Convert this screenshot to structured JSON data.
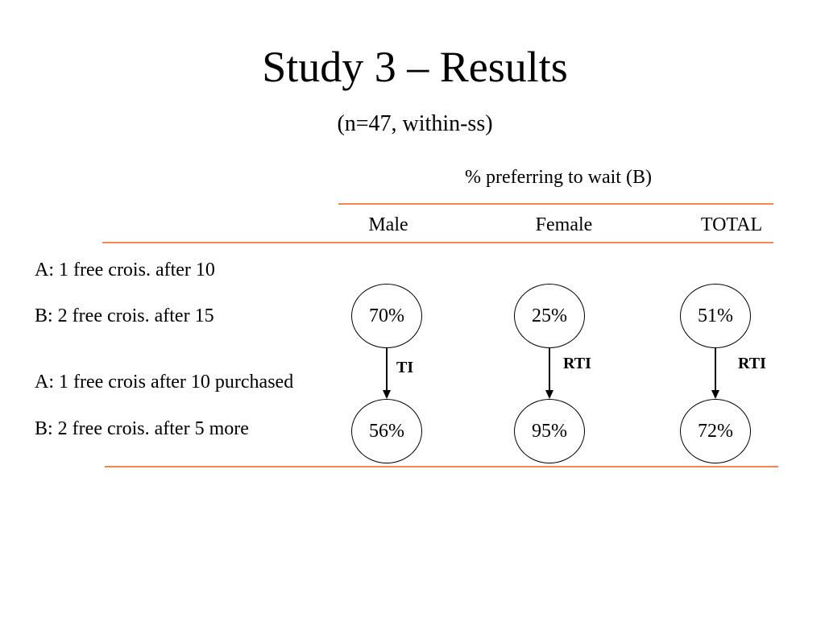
{
  "title": "Study 3 – Results",
  "subtitle": "(n=47, within-ss)",
  "table": {
    "caption": "% preferring to wait (B)",
    "columns": [
      "Male",
      "Female",
      "TOTAL"
    ],
    "rows": [
      "A: 1 free crois. after 10",
      "B: 2 free crois. after 15",
      "A: 1 free crois after 10 purchased",
      "B: 2 free crois. after 5 more"
    ],
    "results": {
      "first": [
        "70%",
        "25%",
        "51%"
      ],
      "second": [
        "56%",
        "95%",
        "72%"
      ]
    },
    "effects": [
      "TI",
      "RTI",
      "RTI"
    ]
  },
  "colors": {
    "rule": "#f08a4b",
    "text": "#000000"
  }
}
